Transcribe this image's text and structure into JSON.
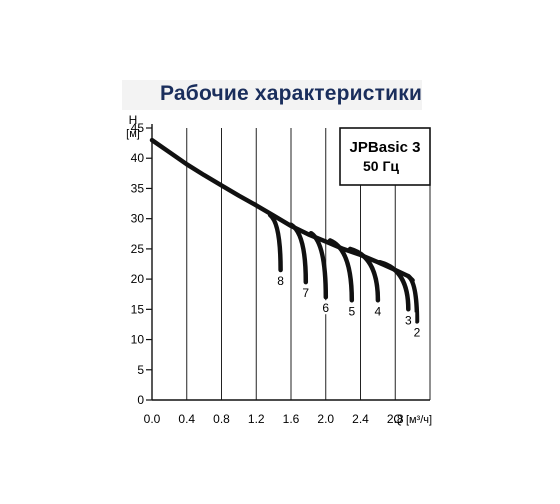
{
  "header": {
    "title": "Рабочие характеристики"
  },
  "chart_data": {
    "type": "line",
    "title": "Рабочие характеристики",
    "ylabel_top": "H",
    "ylabel_unit": "[м]",
    "xlabel": "Q",
    "xlabel_unit": "[м³/ч]",
    "xlim": [
      0,
      3.2
    ],
    "ylim": [
      0,
      45
    ],
    "x_ticks": [
      "0.0",
      "0.4",
      "0.8",
      "1.2",
      "1.6",
      "2.0",
      "2.4",
      "2.8"
    ],
    "y_ticks": [
      "0",
      "5",
      "10",
      "15",
      "20",
      "25",
      "30",
      "35",
      "40",
      "45"
    ],
    "grid": true,
    "legend_box": {
      "line1": "JPBasic 3",
      "line2": "50 Гц"
    },
    "colors": {
      "curve": "#111111",
      "grid": "#222222",
      "title": "#1a2e5c"
    },
    "main_curve": {
      "x": [
        0.0,
        0.2,
        0.4,
        0.6,
        0.8,
        1.0,
        1.2,
        1.4,
        1.6,
        1.8,
        2.0,
        2.2,
        2.4,
        2.6,
        2.8,
        2.95,
        3.0
      ],
      "y": [
        43,
        41,
        39,
        37.2,
        35.5,
        33.8,
        32.2,
        30.5,
        28.8,
        27.4,
        26.2,
        25,
        24,
        22.8,
        21.5,
        20.5,
        19.8
      ]
    },
    "series": [
      {
        "name": "8",
        "start": [
          1.36,
          30.6
        ],
        "end": [
          1.48,
          21.5
        ]
      },
      {
        "name": "7",
        "start": [
          1.6,
          29.0
        ],
        "end": [
          1.77,
          19.5
        ]
      },
      {
        "name": "6",
        "start": [
          1.83,
          27.6
        ],
        "end": [
          2.0,
          17.0
        ]
      },
      {
        "name": "5",
        "start": [
          2.05,
          26.4
        ],
        "end": [
          2.3,
          16.5
        ]
      },
      {
        "name": "4",
        "start": [
          2.28,
          25.0
        ],
        "end": [
          2.6,
          16.5
        ]
      },
      {
        "name": "3",
        "start": [
          2.62,
          22.8
        ],
        "end": [
          2.95,
          15.0
        ]
      },
      {
        "name": "2",
        "start": [
          2.95,
          20.5
        ],
        "end": [
          3.05,
          13.0
        ]
      }
    ]
  }
}
